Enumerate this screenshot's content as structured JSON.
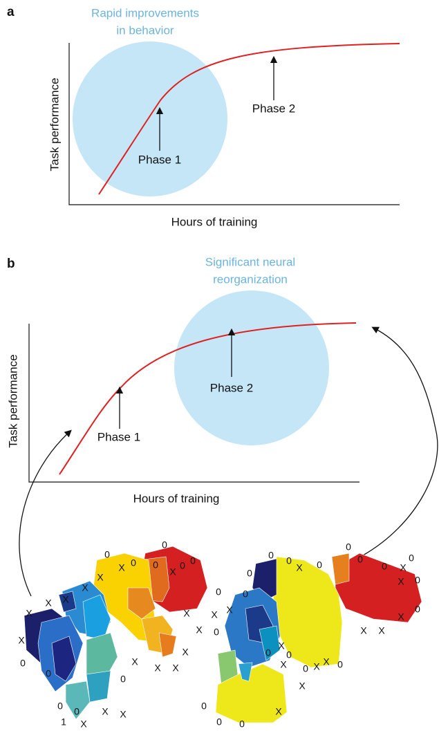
{
  "panels": [
    {
      "label": "a",
      "annotation": [
        "Rapid improvements",
        "in behavior"
      ],
      "y_axis_label": "Task performance",
      "x_axis_label": "Hours of training",
      "arrow_labels": [
        "Phase 1",
        "Phase 2"
      ]
    },
    {
      "label": "b",
      "annotation": [
        "Significant neural",
        "reorganization"
      ],
      "y_axis_label": "Task performance",
      "x_axis_label": "Hours of training",
      "arrow_labels": [
        "Phase 1",
        "Phase 2"
      ]
    }
  ],
  "maps": [
    {
      "markers": [
        "0",
        "X",
        "0",
        "0",
        "0",
        "X",
        "0",
        "0",
        "X",
        "X",
        "X",
        "X",
        "X",
        "X",
        "0",
        "X",
        "X",
        "X",
        "X",
        "X",
        "X",
        "0",
        "0",
        "0",
        "0",
        "X",
        "X",
        "1",
        "X"
      ]
    },
    {
      "markers": [
        "0",
        "0",
        "X",
        "0",
        "0",
        "0",
        "0",
        "X",
        "0",
        "0",
        "X",
        "0",
        "X",
        "X",
        "X",
        "0",
        "0",
        "0",
        "X",
        "X",
        "0",
        "X",
        "0",
        "0",
        "0",
        "X",
        "X",
        "0",
        "X",
        "X",
        "0",
        "0",
        "X",
        "0"
      ]
    }
  ]
}
